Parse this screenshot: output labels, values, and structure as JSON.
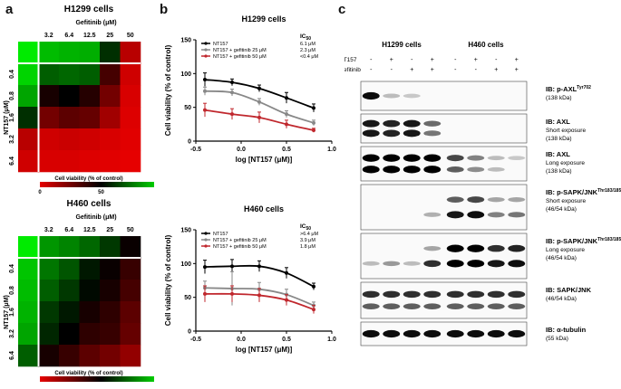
{
  "panels": {
    "a": "a",
    "b": "b",
    "c": "c"
  },
  "heatmaps": [
    {
      "title": "H1299 cells",
      "col_header": "Gefitinib (μM)",
      "cols": [
        "",
        "3.2",
        "6.4",
        "12.5",
        "25",
        "50"
      ],
      "row_header": "NT157 (μM)",
      "rows": [
        "",
        "0.4",
        "0.8",
        "1.6",
        "3.2",
        "6.4"
      ],
      "values": [
        [
          100,
          90,
          88,
          87,
          60,
          10
        ],
        [
          95,
          70,
          72,
          70,
          35,
          5
        ],
        [
          85,
          45,
          50,
          42,
          25,
          3
        ],
        [
          60,
          25,
          30,
          28,
          15,
          2
        ],
        [
          10,
          5,
          6,
          5,
          3,
          1
        ],
        [
          5,
          3,
          3,
          2,
          1,
          0
        ]
      ],
      "scale_title": "Cell viability (% of control)",
      "scale_ticks": [
        "0",
        "50",
        "100"
      ]
    },
    {
      "title": "H460 cells",
      "col_header": "Gefitinib (μM)",
      "cols": [
        "",
        "3.2",
        "6.4",
        "12.5",
        "25",
        "50"
      ],
      "row_header": "NT157 (μM)",
      "rows": [
        "",
        "0.4",
        "0.8",
        "1.6",
        "3.2",
        "6.4"
      ],
      "values": [
        [
          100,
          82,
          78,
          72,
          62,
          48
        ],
        [
          92,
          75,
          68,
          55,
          48,
          38
        ],
        [
          90,
          70,
          62,
          52,
          45,
          35
        ],
        [
          88,
          62,
          55,
          45,
          40,
          30
        ],
        [
          85,
          58,
          50,
          40,
          38,
          28
        ],
        [
          70,
          45,
          38,
          30,
          25,
          18
        ]
      ],
      "scale_title": "Cell viability (% of control)",
      "scale_ticks": [
        "0",
        "50",
        "100"
      ]
    }
  ],
  "chart_data": [
    {
      "type": "line",
      "title": "H1299 cells",
      "xlabel": "log [NT157 (μM)]",
      "ylabel": "Cell viability (% of control)",
      "xlim": [
        -0.5,
        1.0
      ],
      "ylim": [
        0,
        150
      ],
      "xticks": [
        "-0.5",
        "0.0",
        "0.5",
        "1.0"
      ],
      "yticks": [
        "0",
        "50",
        "100",
        "150"
      ],
      "ic50_header": "IC50",
      "x": [
        -0.4,
        -0.1,
        0.2,
        0.5,
        0.8
      ],
      "series": [
        {
          "name": "NT157",
          "ic50": "6.1 μM",
          "color": "#000000",
          "values": [
            91,
            87,
            78,
            64,
            49
          ],
          "errors": [
            10,
            5,
            5,
            8,
            6
          ]
        },
        {
          "name": "NT157 + gefitinib 25 μM",
          "ic50": "2.3 μM",
          "color": "#888888",
          "values": [
            74,
            72,
            58,
            40,
            27
          ],
          "errors": [
            6,
            5,
            5,
            5,
            4
          ]
        },
        {
          "name": "NT157 + gefitinib 50 μM",
          "ic50": "<0.4 μM",
          "color": "#c0272d",
          "values": [
            46,
            40,
            35,
            25,
            16
          ],
          "errors": [
            10,
            8,
            8,
            6,
            3
          ]
        }
      ]
    },
    {
      "type": "line",
      "title": "H460 cells",
      "xlabel": "log [NT157 (μM)]",
      "ylabel": "Cell viability (% of control)",
      "xlim": [
        -0.5,
        1.0
      ],
      "ylim": [
        0,
        150
      ],
      "xticks": [
        "-0.5",
        "0.0",
        "0.5",
        "1.0"
      ],
      "yticks": [
        "0",
        "50",
        "100",
        "150"
      ],
      "ic50_header": "IC50",
      "x": [
        -0.4,
        -0.1,
        0.2,
        0.5,
        0.8
      ],
      "series": [
        {
          "name": "NT157",
          "ic50": ">6.4 μM",
          "color": "#000000",
          "values": [
            95,
            96,
            96,
            86,
            66
          ],
          "errors": [
            10,
            10,
            8,
            8,
            5
          ]
        },
        {
          "name": "NT157 + gefitinib 25 μM",
          "ic50": "3.9 μM",
          "color": "#888888",
          "values": [
            64,
            63,
            62,
            54,
            38
          ],
          "errors": [
            10,
            25,
            10,
            8,
            5
          ]
        },
        {
          "name": "NT157 + gefitinib 50 μM",
          "ic50": "1.8 μM",
          "color": "#c0272d",
          "values": [
            55,
            55,
            53,
            46,
            32
          ],
          "errors": [
            12,
            12,
            10,
            8,
            6
          ]
        }
      ]
    }
  ],
  "western": {
    "cell_lines": [
      "H1299 cells",
      "H460 cells"
    ],
    "treat_rows": [
      {
        "label": "NT157",
        "signs": [
          "-",
          "+",
          "-",
          "+",
          "-",
          "+",
          "-",
          "+"
        ]
      },
      {
        "label": "Gefitinib",
        "signs": [
          "-",
          "-",
          "+",
          "+",
          "-",
          "-",
          "+",
          "+"
        ]
      }
    ],
    "blots": [
      {
        "name": "p-axl",
        "lines": [
          "IB: p-AXL",
          "(138 kDa)"
        ],
        "sup": "Tyr702",
        "bands": [
          [
            0.95,
            0.2,
            0.15,
            0,
            0,
            0,
            0,
            0
          ]
        ]
      },
      {
        "name": "axl-short",
        "lines": [
          "IB: AXL",
          "Short exposure",
          "(138 kDa)"
        ],
        "sup": "",
        "bands": [
          [
            0.9,
            0.85,
            0.9,
            0.55,
            0,
            0,
            0,
            0
          ],
          [
            0.9,
            0.85,
            0.9,
            0.5,
            0,
            0,
            0,
            0
          ]
        ]
      },
      {
        "name": "axl-long",
        "lines": [
          "IB: AXL",
          "Long exposure",
          "(138 kDa)"
        ],
        "sup": "",
        "bands": [
          [
            1,
            1,
            1,
            1,
            0.7,
            0.45,
            0.2,
            0.15
          ],
          [
            1,
            1,
            1,
            1,
            0.6,
            0.4,
            0.2,
            0
          ]
        ]
      },
      {
        "name": "p-jnk-short",
        "lines": [
          "IB: p-SAPK/JNK",
          "Short exposure",
          "(46/54 kDa)"
        ],
        "sup": "Thr183/185",
        "bands": [
          [
            0,
            0,
            0,
            0,
            0.6,
            0.7,
            0.3,
            0.3
          ],
          [
            0,
            0,
            0,
            0.25,
            0.9,
            0.95,
            0.45,
            0.5
          ]
        ]
      },
      {
        "name": "p-jnk-long",
        "lines": [
          "IB: p-SAPK/JNK",
          "Long exposure",
          "(46/54 kDa)"
        ],
        "sup": "Thr183/185",
        "bands": [
          [
            0,
            0,
            0,
            0.3,
            1,
            1,
            0.8,
            0.85
          ],
          [
            0.2,
            0.35,
            0.2,
            0.8,
            1,
            1,
            0.9,
            0.95
          ]
        ]
      },
      {
        "name": "jnk",
        "lines": [
          "IB: SAPK/JNK",
          "(46/54 kDa)"
        ],
        "sup": "",
        "bands": [
          [
            0.8,
            0.8,
            0.8,
            0.8,
            0.8,
            0.8,
            0.8,
            0.8
          ],
          [
            0.6,
            0.6,
            0.6,
            0.6,
            0.6,
            0.6,
            0.6,
            0.6
          ]
        ]
      },
      {
        "name": "tubulin",
        "lines": [
          "IB: α-tubulin",
          "(55 kDa)"
        ],
        "sup": "",
        "bands": [
          [
            0.95,
            0.95,
            0.95,
            0.95,
            0.95,
            0.95,
            0.95,
            0.95
          ]
        ]
      }
    ]
  }
}
